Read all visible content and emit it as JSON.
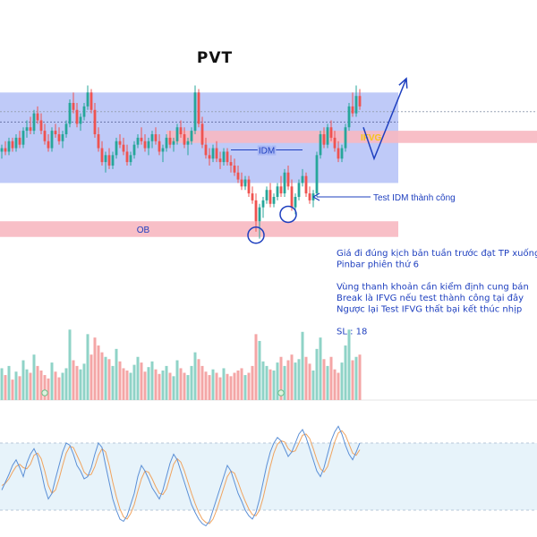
{
  "chart_data": {
    "type": "candlestick",
    "title": "PVT",
    "colors": {
      "up": "#26a69a",
      "down": "#ef5350",
      "vol_up": "#8fd3c7",
      "vol_down": "#f4a6a6",
      "range_zone": "#a9b8f5",
      "pink_zone": "#f7b8c1",
      "stoch_band": "#ddeef8",
      "stoch_k": "#5b8fd6",
      "stoch_d": "#f0a35e",
      "accent": "#1e3fbf",
      "yellow": "#f5c518"
    },
    "ylim": [
      22.8,
      28.2
    ],
    "volume_ylim": [
      0,
      100
    ],
    "stoch_ylim": [
      0,
      100
    ],
    "stoch_band": [
      20,
      80
    ],
    "candles": [
      [
        25.9,
        26.1,
        25.7,
        26.0
      ],
      [
        26.0,
        26.2,
        25.8,
        25.9
      ],
      [
        25.9,
        26.3,
        25.8,
        26.2
      ],
      [
        26.2,
        26.3,
        25.9,
        26.0
      ],
      [
        26.0,
        26.4,
        25.9,
        26.3
      ],
      [
        26.3,
        26.5,
        26.0,
        26.1
      ],
      [
        26.1,
        26.6,
        26.0,
        26.5
      ],
      [
        26.5,
        26.8,
        26.3,
        26.6
      ],
      [
        26.6,
        26.9,
        26.4,
        26.5
      ],
      [
        26.5,
        27.1,
        26.4,
        27.0
      ],
      [
        27.0,
        27.2,
        26.7,
        26.8
      ],
      [
        26.8,
        27.0,
        26.4,
        26.5
      ],
      [
        26.5,
        26.7,
        26.1,
        26.2
      ],
      [
        26.2,
        26.4,
        25.9,
        26.0
      ],
      [
        26.0,
        26.6,
        25.9,
        26.5
      ],
      [
        26.5,
        26.7,
        26.3,
        26.4
      ],
      [
        26.4,
        26.6,
        26.1,
        26.2
      ],
      [
        26.2,
        26.5,
        26.0,
        26.4
      ],
      [
        26.4,
        26.8,
        26.3,
        26.7
      ],
      [
        26.7,
        27.4,
        26.6,
        27.3
      ],
      [
        27.3,
        27.6,
        27.0,
        27.1
      ],
      [
        27.1,
        27.3,
        26.6,
        26.7
      ],
      [
        26.7,
        27.0,
        26.5,
        26.9
      ],
      [
        26.9,
        27.3,
        26.8,
        27.2
      ],
      [
        27.2,
        27.8,
        27.1,
        27.6
      ],
      [
        27.6,
        27.7,
        27.0,
        27.1
      ],
      [
        27.1,
        27.3,
        26.3,
        26.4
      ],
      [
        26.4,
        26.6,
        25.9,
        26.0
      ],
      [
        26.0,
        26.2,
        25.5,
        25.6
      ],
      [
        25.6,
        25.9,
        25.3,
        25.8
      ],
      [
        25.8,
        26.0,
        25.4,
        25.5
      ],
      [
        25.5,
        25.9,
        25.4,
        25.8
      ],
      [
        25.8,
        26.3,
        25.7,
        26.2
      ],
      [
        26.2,
        26.4,
        26.0,
        26.1
      ],
      [
        26.1,
        26.3,
        25.8,
        25.9
      ],
      [
        25.9,
        26.1,
        25.5,
        25.6
      ],
      [
        25.6,
        25.9,
        25.5,
        25.8
      ],
      [
        25.8,
        26.2,
        25.7,
        26.1
      ],
      [
        26.1,
        26.4,
        26.0,
        26.3
      ],
      [
        26.3,
        26.6,
        26.1,
        26.2
      ],
      [
        26.2,
        26.4,
        25.9,
        26.0
      ],
      [
        26.0,
        26.3,
        25.8,
        26.2
      ],
      [
        26.2,
        26.5,
        26.0,
        26.4
      ],
      [
        26.4,
        26.6,
        26.1,
        26.2
      ],
      [
        26.2,
        26.4,
        25.8,
        25.9
      ],
      [
        25.9,
        26.1,
        25.6,
        26.0
      ],
      [
        26.0,
        26.4,
        25.9,
        26.3
      ],
      [
        26.3,
        26.5,
        26.0,
        26.1
      ],
      [
        26.1,
        26.3,
        25.9,
        26.2
      ],
      [
        26.2,
        26.7,
        26.1,
        26.6
      ],
      [
        26.6,
        26.8,
        26.3,
        26.4
      ],
      [
        26.4,
        26.6,
        26.0,
        26.1
      ],
      [
        26.1,
        26.3,
        25.8,
        26.2
      ],
      [
        26.2,
        26.6,
        26.1,
        26.5
      ],
      [
        26.5,
        27.8,
        26.4,
        27.6
      ],
      [
        27.6,
        27.7,
        26.6,
        26.7
      ],
      [
        26.7,
        26.9,
        26.0,
        26.1
      ],
      [
        26.1,
        26.3,
        25.7,
        25.8
      ],
      [
        25.8,
        26.0,
        25.5,
        25.7
      ],
      [
        25.7,
        26.1,
        25.6,
        26.0
      ],
      [
        26.0,
        26.2,
        25.6,
        25.7
      ],
      [
        25.7,
        25.9,
        25.4,
        25.6
      ],
      [
        25.6,
        26.0,
        25.5,
        25.9
      ],
      [
        25.9,
        26.0,
        25.5,
        25.6
      ],
      [
        25.6,
        25.8,
        25.3,
        25.5
      ],
      [
        25.5,
        25.7,
        25.2,
        25.3
      ],
      [
        25.3,
        25.5,
        25.0,
        25.1
      ],
      [
        25.1,
        25.3,
        24.8,
        24.9
      ],
      [
        24.9,
        25.2,
        24.8,
        25.1
      ],
      [
        25.1,
        25.2,
        24.6,
        24.7
      ],
      [
        24.7,
        24.9,
        24.4,
        24.5
      ],
      [
        24.5,
        24.7,
        23.6,
        23.9
      ],
      [
        23.9,
        24.4,
        23.4,
        24.3
      ],
      [
        24.3,
        24.6,
        24.0,
        24.5
      ],
      [
        24.5,
        24.9,
        24.4,
        24.8
      ],
      [
        24.8,
        25.0,
        24.3,
        24.4
      ],
      [
        24.4,
        24.7,
        24.3,
        24.6
      ],
      [
        24.6,
        25.0,
        24.5,
        24.9
      ],
      [
        24.9,
        25.2,
        24.6,
        24.7
      ],
      [
        24.7,
        25.4,
        24.6,
        25.3
      ],
      [
        25.3,
        25.5,
        24.8,
        24.9
      ],
      [
        24.9,
        25.1,
        24.2,
        24.3
      ],
      [
        24.3,
        24.7,
        24.1,
        24.6
      ],
      [
        24.6,
        25.1,
        24.5,
        25.0
      ],
      [
        25.0,
        25.4,
        24.9,
        25.2
      ],
      [
        25.2,
        25.3,
        24.6,
        24.7
      ],
      [
        24.7,
        24.9,
        24.4,
        24.5
      ],
      [
        24.5,
        24.8,
        24.3,
        24.7
      ],
      [
        24.7,
        25.9,
        24.6,
        25.8
      ],
      [
        25.8,
        26.5,
        25.7,
        26.4
      ],
      [
        26.4,
        26.6,
        26.0,
        26.1
      ],
      [
        26.1,
        26.7,
        26.0,
        26.6
      ],
      [
        26.6,
        26.8,
        26.2,
        26.3
      ],
      [
        26.3,
        26.5,
        25.9,
        26.0
      ],
      [
        26.0,
        26.2,
        25.6,
        25.7
      ],
      [
        25.7,
        26.1,
        25.6,
        26.0
      ],
      [
        26.0,
        26.7,
        25.9,
        26.6
      ],
      [
        26.6,
        27.3,
        26.5,
        27.2
      ],
      [
        27.2,
        27.6,
        26.9,
        27.0
      ],
      [
        27.0,
        27.8,
        26.9,
        27.5
      ],
      [
        27.5,
        27.7,
        27.1,
        27.2
      ]
    ],
    "volume": [
      28,
      22,
      30,
      18,
      25,
      21,
      35,
      27,
      24,
      40,
      30,
      26,
      22,
      19,
      33,
      25,
      20,
      24,
      28,
      62,
      35,
      30,
      27,
      32,
      58,
      40,
      55,
      48,
      42,
      38,
      36,
      30,
      45,
      34,
      28,
      26,
      24,
      31,
      38,
      33,
      25,
      29,
      34,
      27,
      23,
      26,
      30,
      24,
      21,
      35,
      28,
      24,
      22,
      30,
      42,
      36,
      30,
      25,
      22,
      27,
      24,
      20,
      28,
      23,
      21,
      24,
      26,
      28,
      22,
      24,
      30,
      58,
      52,
      34,
      30,
      27,
      26,
      33,
      38,
      30,
      35,
      40,
      33,
      36,
      60,
      38,
      32,
      26,
      45,
      55,
      36,
      30,
      38,
      27,
      24,
      33,
      48,
      62,
      35,
      38,
      40
    ],
    "stoch_k": [
      38,
      45,
      52,
      60,
      65,
      58,
      50,
      62,
      70,
      75,
      68,
      55,
      40,
      30,
      35,
      48,
      60,
      72,
      80,
      78,
      70,
      60,
      55,
      48,
      50,
      58,
      70,
      80,
      76,
      60,
      45,
      30,
      20,
      12,
      10,
      15,
      25,
      35,
      50,
      60,
      55,
      48,
      40,
      35,
      30,
      38,
      50,
      62,
      70,
      65,
      55,
      45,
      35,
      25,
      18,
      12,
      8,
      6,
      10,
      20,
      30,
      40,
      50,
      60,
      55,
      45,
      35,
      28,
      20,
      15,
      12,
      18,
      30,
      45,
      60,
      72,
      80,
      85,
      82,
      75,
      68,
      72,
      80,
      88,
      92,
      85,
      75,
      65,
      55,
      50,
      58,
      70,
      82,
      90,
      95,
      88,
      78,
      70,
      65,
      72,
      80
    ],
    "stoch_d": [
      42,
      44,
      48,
      54,
      59,
      61,
      58,
      57,
      61,
      69,
      71,
      66,
      55,
      42,
      35,
      38,
      48,
      60,
      71,
      77,
      76,
      69,
      62,
      54,
      51,
      52,
      59,
      69,
      75,
      72,
      60,
      45,
      32,
      21,
      14,
      12,
      17,
      25,
      37,
      48,
      55,
      54,
      48,
      41,
      35,
      34,
      39,
      50,
      61,
      66,
      63,
      55,
      45,
      35,
      26,
      18,
      12,
      9,
      8,
      12,
      20,
      30,
      40,
      50,
      55,
      53,
      45,
      36,
      28,
      21,
      16,
      15,
      20,
      31,
      45,
      59,
      71,
      79,
      82,
      81,
      75,
      72,
      73,
      80,
      87,
      88,
      84,
      75,
      65,
      57,
      54,
      59,
      70,
      81,
      89,
      91,
      87,
      79,
      71,
      69,
      74
    ],
    "zones": {
      "range_box": {
        "x": [
          0,
          101
        ],
        "y": [
          25.0,
          27.6
        ],
        "extend_right": true
      },
      "ifvg_box": {
        "x": [
          46,
          101
        ],
        "y": [
          26.15,
          26.5
        ],
        "label": "IFVG",
        "extend_right": true
      },
      "ob_box": {
        "x": [
          0,
          101
        ],
        "y": [
          23.45,
          23.9
        ],
        "label": "OB",
        "extend_right": true
      }
    },
    "levels": {
      "dotted_top": 27.05,
      "dotted_mid": 26.75,
      "idm": {
        "x": [
          64,
          84
        ],
        "y": 25.95,
        "label": "IDM"
      }
    },
    "markers": [
      {
        "x": 71,
        "y": 23.5,
        "badge": "1"
      },
      {
        "x": 80,
        "y": 24.1,
        "badge": "1"
      }
    ],
    "annotations": {
      "test_label": "Test IDM thành công",
      "test_arrow_from": [
        103,
        24.6
      ],
      "test_arrow_to": [
        87,
        24.6
      ],
      "projection": [
        [
          101,
          26.6
        ],
        [
          104,
          25.7
        ],
        [
          113,
          28.0
        ]
      ]
    },
    "volume_markers": [
      12,
      78
    ],
    "notes": [
      "Giá đi đúng kịch bản tuần trước đạt TP xuống",
      "Pinbar phiên thứ 6",
      "",
      "Vùng thanh khoản cần kiểm định cung bán",
      "Break là IFVG nếu test thành công tại đây",
      "Ngược lại Test IFVG thất bại kết thúc nhịp",
      "",
      "SL : 18"
    ]
  }
}
